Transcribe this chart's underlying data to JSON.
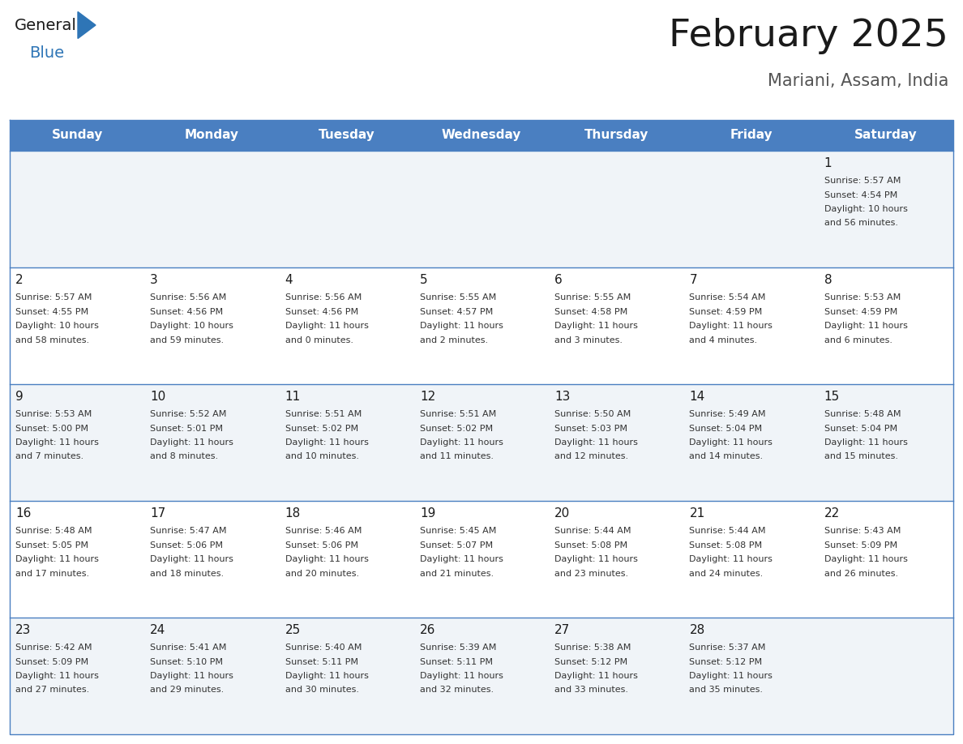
{
  "title": "February 2025",
  "subtitle": "Mariani, Assam, India",
  "days_of_week": [
    "Sunday",
    "Monday",
    "Tuesday",
    "Wednesday",
    "Thursday",
    "Friday",
    "Saturday"
  ],
  "header_bg": "#4a7fc1",
  "header_text": "#FFFFFF",
  "cell_bg_odd": "#f0f4f8",
  "cell_bg_even": "#FFFFFF",
  "cell_border": "#4a7fc1",
  "text_color": "#333333",
  "day_num_color": "#1a1a1a",
  "logo_general_color": "#1a1a1a",
  "logo_blue_color": "#2E75B6",
  "weeks": [
    [
      {
        "day": null
      },
      {
        "day": null
      },
      {
        "day": null
      },
      {
        "day": null
      },
      {
        "day": null
      },
      {
        "day": null
      },
      {
        "day": 1,
        "sunrise": "5:57 AM",
        "sunset": "4:54 PM",
        "daylight_hrs": "10 hours",
        "daylight_min": "and 56 minutes."
      }
    ],
    [
      {
        "day": 2,
        "sunrise": "5:57 AM",
        "sunset": "4:55 PM",
        "daylight_hrs": "10 hours",
        "daylight_min": "and 58 minutes."
      },
      {
        "day": 3,
        "sunrise": "5:56 AM",
        "sunset": "4:56 PM",
        "daylight_hrs": "10 hours",
        "daylight_min": "and 59 minutes."
      },
      {
        "day": 4,
        "sunrise": "5:56 AM",
        "sunset": "4:56 PM",
        "daylight_hrs": "11 hours",
        "daylight_min": "and 0 minutes."
      },
      {
        "day": 5,
        "sunrise": "5:55 AM",
        "sunset": "4:57 PM",
        "daylight_hrs": "11 hours",
        "daylight_min": "and 2 minutes."
      },
      {
        "day": 6,
        "sunrise": "5:55 AM",
        "sunset": "4:58 PM",
        "daylight_hrs": "11 hours",
        "daylight_min": "and 3 minutes."
      },
      {
        "day": 7,
        "sunrise": "5:54 AM",
        "sunset": "4:59 PM",
        "daylight_hrs": "11 hours",
        "daylight_min": "and 4 minutes."
      },
      {
        "day": 8,
        "sunrise": "5:53 AM",
        "sunset": "4:59 PM",
        "daylight_hrs": "11 hours",
        "daylight_min": "and 6 minutes."
      }
    ],
    [
      {
        "day": 9,
        "sunrise": "5:53 AM",
        "sunset": "5:00 PM",
        "daylight_hrs": "11 hours",
        "daylight_min": "and 7 minutes."
      },
      {
        "day": 10,
        "sunrise": "5:52 AM",
        "sunset": "5:01 PM",
        "daylight_hrs": "11 hours",
        "daylight_min": "and 8 minutes."
      },
      {
        "day": 11,
        "sunrise": "5:51 AM",
        "sunset": "5:02 PM",
        "daylight_hrs": "11 hours",
        "daylight_min": "and 10 minutes."
      },
      {
        "day": 12,
        "sunrise": "5:51 AM",
        "sunset": "5:02 PM",
        "daylight_hrs": "11 hours",
        "daylight_min": "and 11 minutes."
      },
      {
        "day": 13,
        "sunrise": "5:50 AM",
        "sunset": "5:03 PM",
        "daylight_hrs": "11 hours",
        "daylight_min": "and 12 minutes."
      },
      {
        "day": 14,
        "sunrise": "5:49 AM",
        "sunset": "5:04 PM",
        "daylight_hrs": "11 hours",
        "daylight_min": "and 14 minutes."
      },
      {
        "day": 15,
        "sunrise": "5:48 AM",
        "sunset": "5:04 PM",
        "daylight_hrs": "11 hours",
        "daylight_min": "and 15 minutes."
      }
    ],
    [
      {
        "day": 16,
        "sunrise": "5:48 AM",
        "sunset": "5:05 PM",
        "daylight_hrs": "11 hours",
        "daylight_min": "and 17 minutes."
      },
      {
        "day": 17,
        "sunrise": "5:47 AM",
        "sunset": "5:06 PM",
        "daylight_hrs": "11 hours",
        "daylight_min": "and 18 minutes."
      },
      {
        "day": 18,
        "sunrise": "5:46 AM",
        "sunset": "5:06 PM",
        "daylight_hrs": "11 hours",
        "daylight_min": "and 20 minutes."
      },
      {
        "day": 19,
        "sunrise": "5:45 AM",
        "sunset": "5:07 PM",
        "daylight_hrs": "11 hours",
        "daylight_min": "and 21 minutes."
      },
      {
        "day": 20,
        "sunrise": "5:44 AM",
        "sunset": "5:08 PM",
        "daylight_hrs": "11 hours",
        "daylight_min": "and 23 minutes."
      },
      {
        "day": 21,
        "sunrise": "5:44 AM",
        "sunset": "5:08 PM",
        "daylight_hrs": "11 hours",
        "daylight_min": "and 24 minutes."
      },
      {
        "day": 22,
        "sunrise": "5:43 AM",
        "sunset": "5:09 PM",
        "daylight_hrs": "11 hours",
        "daylight_min": "and 26 minutes."
      }
    ],
    [
      {
        "day": 23,
        "sunrise": "5:42 AM",
        "sunset": "5:09 PM",
        "daylight_hrs": "11 hours",
        "daylight_min": "and 27 minutes."
      },
      {
        "day": 24,
        "sunrise": "5:41 AM",
        "sunset": "5:10 PM",
        "daylight_hrs": "11 hours",
        "daylight_min": "and 29 minutes."
      },
      {
        "day": 25,
        "sunrise": "5:40 AM",
        "sunset": "5:11 PM",
        "daylight_hrs": "11 hours",
        "daylight_min": "and 30 minutes."
      },
      {
        "day": 26,
        "sunrise": "5:39 AM",
        "sunset": "5:11 PM",
        "daylight_hrs": "11 hours",
        "daylight_min": "and 32 minutes."
      },
      {
        "day": 27,
        "sunrise": "5:38 AM",
        "sunset": "5:12 PM",
        "daylight_hrs": "11 hours",
        "daylight_min": "and 33 minutes."
      },
      {
        "day": 28,
        "sunrise": "5:37 AM",
        "sunset": "5:12 PM",
        "daylight_hrs": "11 hours",
        "daylight_min": "and 35 minutes."
      },
      {
        "day": null
      }
    ]
  ]
}
